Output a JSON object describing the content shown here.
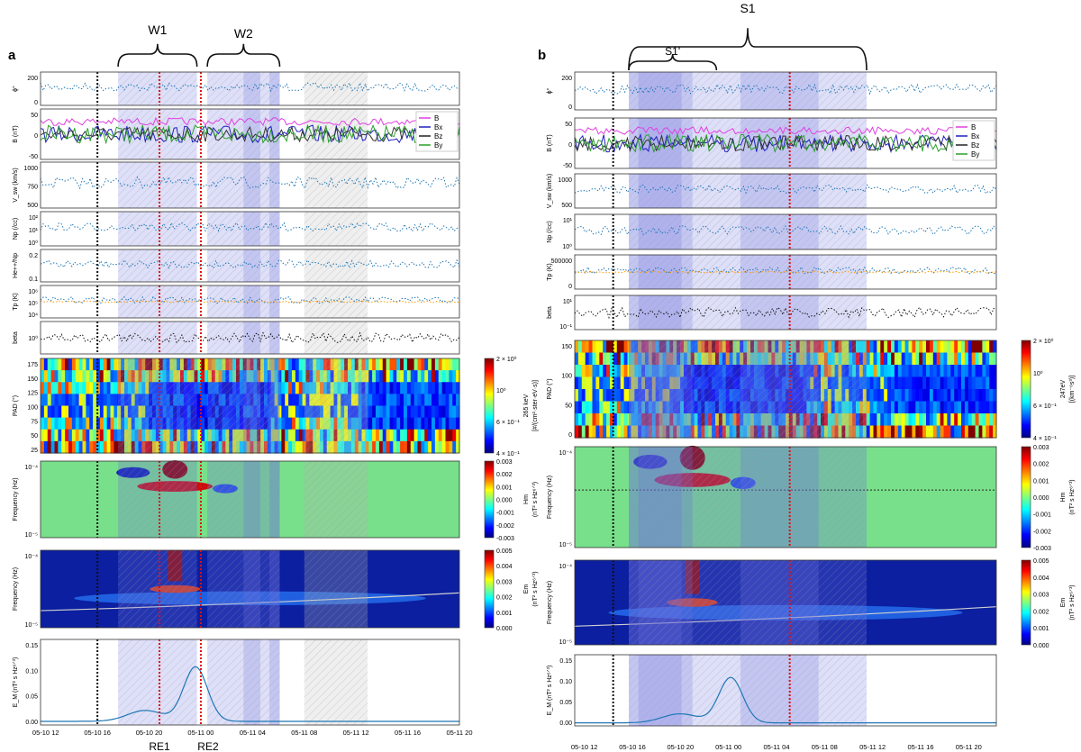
{
  "colors": {
    "shade_blue": "#6b6fe0",
    "shade_gray": "#b4b4b4",
    "line_blue": "#1f77b4",
    "line_orange": "#ff9900",
    "magenta": "#e040e0",
    "green": "#2ca02c",
    "navy": "#2020c0",
    "red_marker": "#e01010",
    "black_marker": "#111111"
  },
  "chart_data": [
    {
      "panel": "a",
      "type": "line",
      "title": "",
      "brackets": [
        "W1",
        "W2"
      ],
      "markers": [
        "RE1",
        "RE2"
      ],
      "x_ticks": [
        "05-10 12",
        "05-10 16",
        "05-10 20",
        "05-11 00",
        "05-11 04",
        "05-11 08",
        "05-11 12",
        "05-11 16",
        "05-11 20"
      ],
      "rows": [
        {
          "ylabel": "ϕ°",
          "ticks": [
            "200",
            "0"
          ]
        },
        {
          "ylabel": "B (nT)",
          "ticks": [
            "50",
            "0",
            "-50"
          ],
          "legend": [
            "B",
            "Bx",
            "Bz",
            "By"
          ]
        },
        {
          "ylabel": "V_sw (km/s)",
          "ticks": [
            "1000",
            "750",
            "500"
          ]
        },
        {
          "ylabel": "Np (/cc)",
          "ticks": [
            "10²",
            "10¹",
            "10⁰"
          ]
        },
        {
          "ylabel": "He++/Np",
          "ticks": [
            "0.2",
            "0.1"
          ]
        },
        {
          "ylabel": "Tp (K)",
          "ticks": [
            "10⁶",
            "10⁵",
            "10⁴"
          ]
        },
        {
          "ylabel": "beta",
          "ticks": [
            "10⁰"
          ]
        },
        {
          "ylabel": "PAD (°)",
          "ticks": [
            "175",
            "150",
            "125",
            "100",
            "75",
            "50",
            "25"
          ],
          "colorbar": {
            "ticks": [
              "2 × 10⁰",
              "10⁰",
              "6 × 10⁻¹",
              "4 × 10⁻¹"
            ],
            "label": "265 keV",
            "unit": "[#/(cm²·ster·eV·s)]"
          }
        },
        {
          "ylabel": "Frequency (Hz)",
          "ticks": [
            "10⁻⁴",
            "10⁻⁵"
          ],
          "colorbar": {
            "ticks": [
              "0.003",
              "0.002",
              "0.001",
              "0.000",
              "-0.001",
              "-0.002",
              "-0.003"
            ],
            "label": "Hm",
            "unit": "(nT² s Hz⁶ᐟ³)"
          }
        },
        {
          "ylabel": "Frequency (Hz)",
          "ticks": [
            "10⁻⁴",
            "10⁻⁵"
          ],
          "colorbar": {
            "ticks": [
              "0.005",
              "0.004",
              "0.003",
              "0.002",
              "0.001",
              "0.000"
            ],
            "label": "Em",
            "unit": "(nT² s Hz⁶ᐟ³)"
          }
        },
        {
          "ylabel": "E_M (nT² s Hz⁶ᐟ³)",
          "ticks": [
            "0.15",
            "0.10",
            "0.05",
            "0.00"
          ]
        }
      ]
    },
    {
      "panel": "b",
      "type": "line",
      "title": "",
      "brackets": [
        "S1",
        "S1'"
      ],
      "x_ticks": [
        "05-10 12",
        "05-10 16",
        "05-10 20",
        "05-11 00",
        "05-11 04",
        "05-11 08",
        "05-11 12",
        "05-11 16",
        "05-11 20"
      ],
      "rows": [
        {
          "ylabel": "ϕ°",
          "ticks": [
            "200",
            "0"
          ]
        },
        {
          "ylabel": "B (nT)",
          "ticks": [
            "50",
            "0",
            "-50"
          ],
          "legend": [
            "B",
            "Bx",
            "Bz",
            "By"
          ]
        },
        {
          "ylabel": "V_sw (km/s)",
          "ticks": [
            "1000",
            "500"
          ]
        },
        {
          "ylabel": "Np (/cc)",
          "ticks": [
            "10¹",
            "10⁰"
          ]
        },
        {
          "ylabel": "Tp (K)",
          "ticks": [
            "500000",
            "0"
          ]
        },
        {
          "ylabel": "beta",
          "ticks": [
            "10¹",
            "10⁻¹"
          ]
        },
        {
          "ylabel": "PAD (°)",
          "ticks": [
            "150",
            "100",
            "50",
            "0"
          ],
          "colorbar": {
            "ticks": [
              "2 × 10⁰",
              "10⁰",
              "6 × 10⁻¹",
              "4 × 10⁻¹"
            ],
            "label": "247eV",
            "unit": "[(km⁻⁶s³)]"
          }
        },
        {
          "ylabel": "Frequency (Hz)",
          "ticks": [
            "10⁻⁴",
            "10⁻⁵"
          ],
          "colorbar": {
            "ticks": [
              "0.003",
              "0.002",
              "0.001",
              "0.000",
              "-0.001",
              "-0.002",
              "-0.003"
            ],
            "label": "Hm",
            "unit": "(nT² s Hz⁶ᐟ³)"
          }
        },
        {
          "ylabel": "Frequency (Hz)",
          "ticks": [
            "10⁻⁴",
            "10⁻⁵"
          ],
          "colorbar": {
            "ticks": [
              "0.005",
              "0.004",
              "0.003",
              "0.002",
              "0.001",
              "0.000"
            ],
            "label": "Em",
            "unit": "(nT² s Hz⁶ᐟ³)"
          }
        },
        {
          "ylabel": "E_M (nT² s Hz⁶ᐟ³)",
          "ticks": [
            "0.15",
            "0.10",
            "0.05",
            "0.00"
          ]
        }
      ]
    }
  ]
}
